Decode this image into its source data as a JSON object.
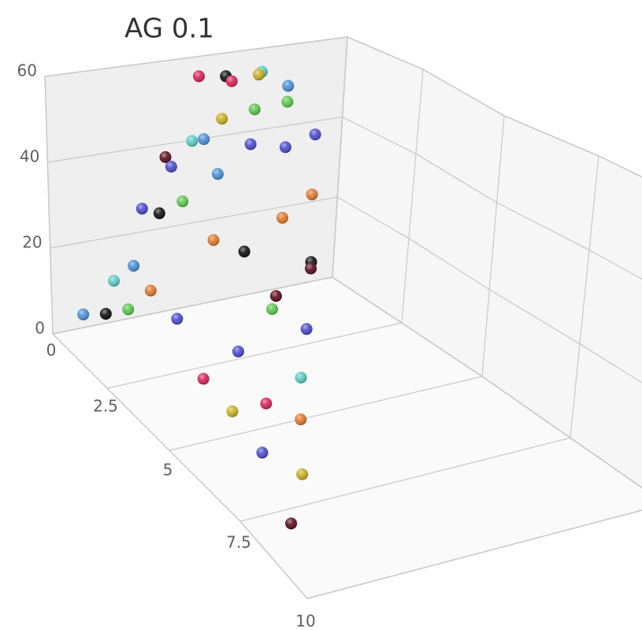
{
  "chart_data": {
    "type": "scatter3d",
    "title": "AG 0.1",
    "x": [
      5.1,
      6.0,
      6.2,
      7.2,
      7.1,
      8.1,
      5.9,
      7.0,
      8.1,
      4.9,
      5.3,
      6.9,
      8.1,
      9.1,
      4.0,
      4.2,
      5.8,
      9.1,
      3.2,
      3.8,
      4.6,
      8.1,
      5.7,
      6.8,
      9.2,
      9.2,
      2.9,
      2.2,
      3.5,
      1.1,
      1.9,
      2.7,
      7.7,
      7.1,
      4.1,
      7.3,
      4.7,
      2.9,
      5.5,
      3.8,
      2.7,
      4.2,
      2.3,
      2.7,
      1.2
    ],
    "values": [
      55.2,
      54.3,
      52.9,
      54.2,
      53.6,
      49.8,
      44.1,
      45.2,
      45.9,
      39.8,
      39.8,
      36.8,
      34.7,
      36.7,
      36.9,
      34.4,
      30.8,
      21.8,
      25.5,
      23.7,
      25.6,
      17.3,
      14.9,
      10.7,
      4.9,
      3.3,
      12.3,
      9.6,
      5.6,
      3.1,
      2.2,
      2.2,
      0,
      0,
      0,
      0,
      0,
      0,
      0,
      0,
      0,
      0,
      0,
      0,
      0
    ],
    "z": [
      0,
      0,
      0,
      0,
      0,
      0,
      0,
      0,
      0,
      0,
      0,
      0,
      0,
      0,
      0,
      0,
      0,
      0,
      0,
      0,
      0,
      0,
      0,
      0,
      0,
      0,
      0,
      0,
      0,
      0,
      0,
      0,
      0.3,
      0.8,
      0.4,
      1.9,
      2.2,
      2.9,
      3.6,
      4.2,
      4.2,
      5.0,
      5.7,
      6.6,
      7.9
    ],
    "colors": [
      "#d6245a",
      "#111111",
      "#d6245a",
      "#5cc9c4",
      "#c7ae21",
      "#4a8fd3",
      "#c7ae21",
      "#5cc54d",
      "#5cc54d",
      "#5cc9c4",
      "#4a8fd3",
      "#4b4ccb",
      "#4b4ccb",
      "#4b4ccb",
      "#5a0f1e",
      "#4b4ccb",
      "#4a8fd3",
      "#e0782c",
      "#4b4ccb",
      "#111111",
      "#5cc54d",
      "#e0782c",
      "#e0782c",
      "#111111",
      "#111111",
      "#5a0f1e",
      "#4a8fd3",
      "#5cc9c4",
      "#e0782c",
      "#4a8fd3",
      "#111111",
      "#5cc54d",
      "#5a0f1e",
      "#5cc54d",
      "#4b4ccb",
      "#4b4ccb",
      "#4b4ccb",
      "#d6245a",
      "#5cc9c4",
      "#d6245a",
      "#c7ae21",
      "#e0782c",
      "#4b4ccb",
      "#c7ae21",
      "#5a0f1e"
    ],
    "xlim": [
      0,
      10
    ],
    "ylim": [
      0,
      60
    ],
    "zlim": [
      0,
      10
    ],
    "yticks": [
      0,
      20,
      40,
      60
    ],
    "zticks": [
      0,
      2.5,
      5,
      7.5,
      10
    ],
    "grid": true
  }
}
